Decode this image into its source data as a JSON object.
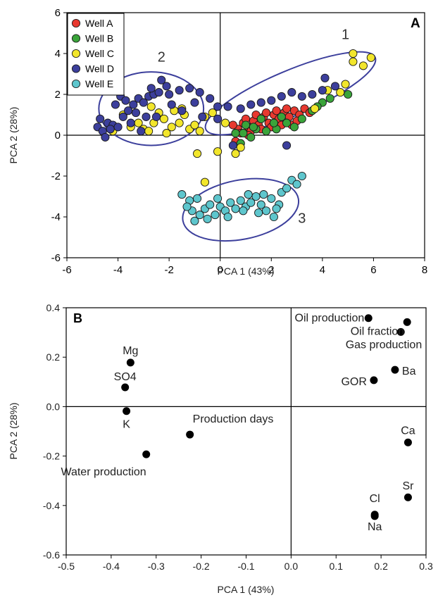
{
  "chart_data": [
    {
      "panel": "A",
      "type": "scatter",
      "xlabel": "PCA 1 (43%)",
      "ylabel": "PCA 2 (28%)",
      "xlim": [
        -6,
        8
      ],
      "ylim": [
        -6,
        6
      ],
      "xticks": [
        -6,
        -4,
        -2,
        0,
        2,
        4,
        6,
        8
      ],
      "yticks": [
        -6,
        -4,
        -2,
        0,
        2,
        4,
        6
      ],
      "legend_position": "top-left",
      "zero_lines": true,
      "grid": false,
      "series": [
        {
          "name": "Well A",
          "color": "#e8392f",
          "points": [
            [
              0.7,
              0.3
            ],
            [
              0.9,
              0.6
            ],
            [
              1.1,
              0.4
            ],
            [
              1.3,
              0.7
            ],
            [
              1.5,
              0.5
            ],
            [
              1.7,
              0.9
            ],
            [
              1.9,
              0.6
            ],
            [
              2.1,
              1.0
            ],
            [
              2.3,
              0.8
            ],
            [
              2.5,
              1.1
            ],
            [
              2.7,
              0.9
            ],
            [
              2.9,
              1.2
            ],
            [
              3.1,
              1.0
            ],
            [
              1.2,
              0.2
            ],
            [
              1.6,
              0.3
            ],
            [
              2.0,
              0.4
            ],
            [
              2.4,
              0.5
            ],
            [
              0.5,
              0.5
            ],
            [
              1.0,
              0.8
            ],
            [
              1.4,
              1.0
            ],
            [
              1.8,
              1.1
            ],
            [
              2.2,
              1.2
            ],
            [
              2.6,
              1.3
            ],
            [
              3.3,
              1.3
            ],
            [
              3.5,
              1.1
            ],
            [
              0.6,
              -0.3
            ],
            [
              1.1,
              0.0
            ],
            [
              2.8,
              0.5
            ],
            [
              3.0,
              0.7
            ],
            [
              0.8,
              0.1
            ]
          ]
        },
        {
          "name": "Well B",
          "color": "#3aa43a",
          "points": [
            [
              0.9,
              0.1
            ],
            [
              1.2,
              -0.1
            ],
            [
              1.4,
              0.3
            ],
            [
              1.8,
              0.2
            ],
            [
              2.2,
              0.3
            ],
            [
              2.6,
              0.6
            ],
            [
              3.2,
              0.8
            ],
            [
              3.6,
              1.2
            ],
            [
              4.0,
              1.6
            ],
            [
              4.3,
              1.8
            ],
            [
              5.0,
              2.0
            ],
            [
              0.8,
              -0.4
            ],
            [
              1.0,
              0.5
            ],
            [
              1.6,
              0.8
            ],
            [
              2.1,
              0.6
            ],
            [
              2.9,
              0.4
            ],
            [
              3.8,
              1.4
            ],
            [
              0.6,
              0.1
            ],
            [
              1.3,
              0.4
            ],
            [
              2.4,
              0.9
            ]
          ]
        },
        {
          "name": "Well C",
          "color": "#f2e62b",
          "points": [
            [
              5.2,
              4.0
            ],
            [
              5.6,
              3.4
            ],
            [
              5.9,
              3.8
            ],
            [
              5.2,
              3.6
            ],
            [
              4.9,
              2.5
            ],
            [
              4.7,
              2.1
            ],
            [
              4.2,
              2.2
            ],
            [
              3.7,
              1.3
            ],
            [
              -4.2,
              0.2
            ],
            [
              -3.5,
              0.4
            ],
            [
              -3.0,
              0.3
            ],
            [
              -2.6,
              0.6
            ],
            [
              -2.2,
              0.8
            ],
            [
              -1.9,
              0.4
            ],
            [
              -1.6,
              0.6
            ],
            [
              -1.4,
              1.0
            ],
            [
              -1.2,
              0.3
            ],
            [
              -1.0,
              0.5
            ],
            [
              -0.6,
              0.9
            ],
            [
              -0.3,
              1.1
            ],
            [
              -0.9,
              -0.9
            ],
            [
              -0.1,
              -0.8
            ],
            [
              -0.6,
              -2.3
            ],
            [
              0.8,
              -0.6
            ],
            [
              0.6,
              -0.9
            ],
            [
              -3.2,
              0.6
            ],
            [
              -2.8,
              0.2
            ],
            [
              -2.4,
              1.1
            ],
            [
              -1.8,
              1.2
            ],
            [
              -0.8,
              0.2
            ],
            [
              -2.1,
              0.1
            ],
            [
              -3.8,
              1.0
            ],
            [
              -2.7,
              1.4
            ],
            [
              -1.5,
              1.3
            ],
            [
              0.2,
              0.6
            ]
          ]
        },
        {
          "name": "Well D",
          "color": "#3c3f9c",
          "points": [
            [
              -4.8,
              0.4
            ],
            [
              -4.6,
              0.2
            ],
            [
              -4.4,
              0.6
            ],
            [
              -4.7,
              0.8
            ],
            [
              -4.2,
              0.5
            ],
            [
              -4.5,
              -0.1
            ],
            [
              -4.3,
              0.3
            ],
            [
              -4.0,
              0.4
            ],
            [
              -3.8,
              0.9
            ],
            [
              -3.6,
              1.2
            ],
            [
              -3.4,
              1.5
            ],
            [
              -3.2,
              1.8
            ],
            [
              -3.0,
              1.6
            ],
            [
              -2.8,
              1.9
            ],
            [
              -2.6,
              2.0
            ],
            [
              -2.4,
              2.1
            ],
            [
              -2.3,
              2.7
            ],
            [
              -2.1,
              2.4
            ],
            [
              -2.0,
              2.0
            ],
            [
              -1.6,
              2.2
            ],
            [
              -1.2,
              2.3
            ],
            [
              -0.8,
              2.1
            ],
            [
              -0.4,
              1.8
            ],
            [
              -0.1,
              1.4
            ],
            [
              0.3,
              1.4
            ],
            [
              0.8,
              1.3
            ],
            [
              1.2,
              1.5
            ],
            [
              1.6,
              1.6
            ],
            [
              2.0,
              1.7
            ],
            [
              2.4,
              1.9
            ],
            [
              2.8,
              2.1
            ],
            [
              3.2,
              1.9
            ],
            [
              3.6,
              2.0
            ],
            [
              4.0,
              2.2
            ],
            [
              4.1,
              2.8
            ],
            [
              4.5,
              2.4
            ],
            [
              -3.9,
              1.9
            ],
            [
              -3.5,
              0.6
            ],
            [
              -3.3,
              1.1
            ],
            [
              -2.9,
              0.9
            ],
            [
              -3.1,
              0.2
            ],
            [
              -2.5,
              0.9
            ],
            [
              -4.1,
              1.5
            ],
            [
              -3.7,
              1.7
            ],
            [
              -1.5,
              1.2
            ],
            [
              -1.0,
              1.6
            ],
            [
              -0.7,
              0.9
            ],
            [
              0.5,
              -0.5
            ],
            [
              2.6,
              -0.5
            ],
            [
              -0.1,
              0.8
            ],
            [
              -2.7,
              2.3
            ],
            [
              -1.9,
              1.5
            ]
          ]
        },
        {
          "name": "Well E",
          "color": "#5ec6cd",
          "points": [
            [
              -1.5,
              -2.9
            ],
            [
              -1.2,
              -3.2
            ],
            [
              -1.1,
              -3.7
            ],
            [
              -1.0,
              -4.2
            ],
            [
              -0.8,
              -3.9
            ],
            [
              -0.6,
              -3.6
            ],
            [
              -0.4,
              -3.4
            ],
            [
              -0.2,
              -3.9
            ],
            [
              0.0,
              -3.5
            ],
            [
              0.2,
              -3.7
            ],
            [
              0.4,
              -3.3
            ],
            [
              0.6,
              -3.6
            ],
            [
              0.8,
              -3.2
            ],
            [
              1.0,
              -3.5
            ],
            [
              1.2,
              -3.3
            ],
            [
              1.4,
              -3.0
            ],
            [
              1.6,
              -3.4
            ],
            [
              1.8,
              -3.7
            ],
            [
              2.0,
              -3.1
            ],
            [
              2.1,
              -4.0
            ],
            [
              2.3,
              -3.4
            ],
            [
              2.4,
              -2.8
            ],
            [
              2.6,
              -2.6
            ],
            [
              2.8,
              -2.2
            ],
            [
              3.0,
              -2.4
            ],
            [
              3.2,
              -2.0
            ],
            [
              -0.9,
              -3.1
            ],
            [
              -0.5,
              -4.1
            ],
            [
              0.3,
              -4.0
            ],
            [
              0.9,
              -3.7
            ],
            [
              1.5,
              -3.8
            ],
            [
              1.7,
              -2.9
            ],
            [
              2.2,
              -3.6
            ],
            [
              -1.3,
              -3.5
            ],
            [
              -0.1,
              -3.1
            ],
            [
              1.1,
              -2.9
            ]
          ]
        }
      ],
      "annotations": [
        {
          "text": "1",
          "x": 4.9,
          "y": 4.7
        },
        {
          "text": "2",
          "x": -2.3,
          "y": 3.6
        },
        {
          "text": "3",
          "x": 3.2,
          "y": -4.3
        }
      ],
      "ellipses": [
        {
          "label": "1",
          "cx": 2.75,
          "cy": 2.05,
          "rx": 3.6,
          "ry": 1.1,
          "rotation_deg": 23
        },
        {
          "label": "2",
          "cx": -2.7,
          "cy": 1.3,
          "rx": 2.05,
          "ry": 1.8,
          "rotation_deg": 0
        },
        {
          "label": "3",
          "cx": 0.8,
          "cy": -3.65,
          "rx": 2.3,
          "ry": 1.45,
          "rotation_deg": 11
        }
      ]
    },
    {
      "panel": "B",
      "type": "scatter",
      "xlabel": "PCA 1 (43%)",
      "ylabel": "PCA 2 (28%)",
      "xlim": [
        -0.5,
        0.3
      ],
      "ylim": [
        -0.6,
        0.4
      ],
      "xticks": [
        -0.5,
        -0.4,
        -0.3,
        -0.2,
        -0.1,
        0.0,
        0.1,
        0.2,
        0.3
      ],
      "yticks": [
        -0.6,
        -0.4,
        -0.2,
        0.0,
        0.2,
        0.4
      ],
      "zero_lines": true,
      "grid": false,
      "points": [
        {
          "label": "Mg",
          "x": -0.357,
          "y": 0.178
        },
        {
          "label": "SO4",
          "x": -0.369,
          "y": 0.078
        },
        {
          "label": "K",
          "x": -0.366,
          "y": -0.018
        },
        {
          "label": "Production days",
          "x": -0.225,
          "y": -0.113
        },
        {
          "label": "Water production",
          "x": -0.322,
          "y": -0.193
        },
        {
          "label": "Oil production",
          "x": 0.172,
          "y": 0.358
        },
        {
          "label": "Oil fraction",
          "x": 0.258,
          "y": 0.342
        },
        {
          "label": "Gas production",
          "x": 0.244,
          "y": 0.302
        },
        {
          "label": "Ba",
          "x": 0.231,
          "y": 0.149
        },
        {
          "label": "GOR",
          "x": 0.184,
          "y": 0.107
        },
        {
          "label": "Ca",
          "x": 0.26,
          "y": -0.145
        },
        {
          "label": "Sr",
          "x": 0.26,
          "y": -0.367
        },
        {
          "label": "Cl",
          "x": 0.186,
          "y": -0.437
        },
        {
          "label": "Na",
          "x": 0.186,
          "y": -0.443
        }
      ]
    }
  ],
  "panel_labels": {
    "a": "A",
    "b": "B"
  }
}
